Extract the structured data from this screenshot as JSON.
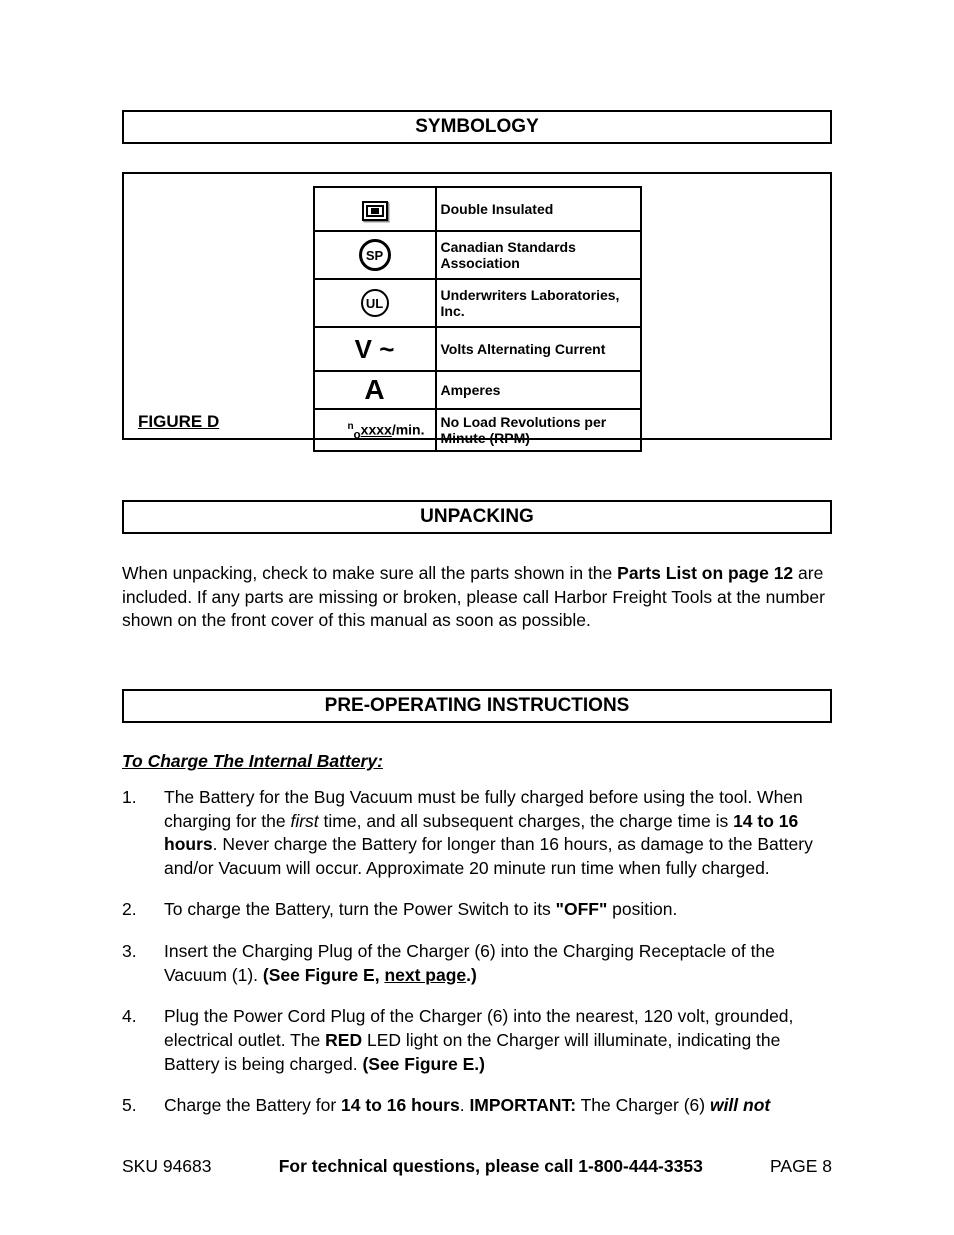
{
  "symbology": {
    "title": "SYMBOLOGY",
    "figure_label": "FIGURE D",
    "rows": [
      {
        "id": "double-insulated",
        "desc": "Double Insulated"
      },
      {
        "id": "csa",
        "desc": "Canadian Standards Association"
      },
      {
        "id": "ul",
        "desc": "Underwriters Laboratories, Inc."
      },
      {
        "id": "vac",
        "desc": "Volts Alternating Current"
      },
      {
        "id": "amperes",
        "desc": "Amperes"
      },
      {
        "id": "rpm",
        "desc": "No Load Revolutions per Minute (RPM)"
      }
    ],
    "symbol_glyphs": {
      "csa_text": "SP",
      "ul_text": "UL",
      "vac_text": "V ~",
      "amp_text": "A",
      "rpm_prefix": "n",
      "rpm_sub": "o",
      "rpm_x": "xxxx",
      "rpm_suffix": "/min."
    }
  },
  "unpacking": {
    "title": "UNPACKING",
    "para_pre": "When unpacking, check to make sure all the parts shown in the ",
    "para_bold": "Parts List on page 12",
    "para_post": " are included.  If any parts are missing or broken, please call Harbor Freight Tools at the number shown on the front cover of this manual as soon as possible."
  },
  "preop": {
    "title": "PRE-OPERATING  INSTRUCTIONS",
    "subhead": "To Charge The Internal Battery:",
    "items": [
      {
        "n": "1.",
        "parts": [
          {
            "t": "The Battery for the Bug Vacuum must be fully charged before using the tool.  When charging for the "
          },
          {
            "t": "first",
            "ital": true
          },
          {
            "t": " time, and all subsequent charges, the charge time is "
          },
          {
            "t": "14 to 16 hours",
            "bold": true
          },
          {
            "t": ".  Never charge the Battery for longer than 16 hours, as damage to the Battery and/or Vacuum will occur.  Approximate 20 minute run time when fully charged."
          }
        ]
      },
      {
        "n": "2.",
        "parts": [
          {
            "t": "To charge the Battery, turn the Power Switch to its "
          },
          {
            "t": "\"OFF\"",
            "bold": true
          },
          {
            "t": " position."
          }
        ]
      },
      {
        "n": "3.",
        "parts": [
          {
            "t": "Insert the Charging Plug of the Charger (6) into the Charging Receptacle of the Vacuum (1).  "
          },
          {
            "t": "(See Figure E, ",
            "bold": true
          },
          {
            "t": "next page",
            "bold": true,
            "underline": true
          },
          {
            "t": ".)",
            "bold": true
          }
        ]
      },
      {
        "n": "4.",
        "parts": [
          {
            "t": "Plug the Power Cord Plug of the Charger (6) into the nearest, 120 volt, grounded, electrical outlet.  The "
          },
          {
            "t": "RED",
            "bold": true
          },
          {
            "t": " LED light on the Charger will illuminate, indicating the Battery is being charged.  "
          },
          {
            "t": "(See Figure E.)",
            "bold": true
          }
        ]
      },
      {
        "n": "5.",
        "parts": [
          {
            "t": "Charge the Battery for "
          },
          {
            "t": "14 to 16 hours",
            "bold": true
          },
          {
            "t": ".  "
          },
          {
            "t": "IMPORTANT:",
            "bold": true
          },
          {
            "t": "  The Charger (6) "
          },
          {
            "t": "will not",
            "bold": true,
            "ital": true
          }
        ]
      }
    ]
  },
  "footer": {
    "sku": "SKU 94683",
    "mid": "For technical questions, please call 1-800-444-3353",
    "page": "PAGE 8"
  }
}
